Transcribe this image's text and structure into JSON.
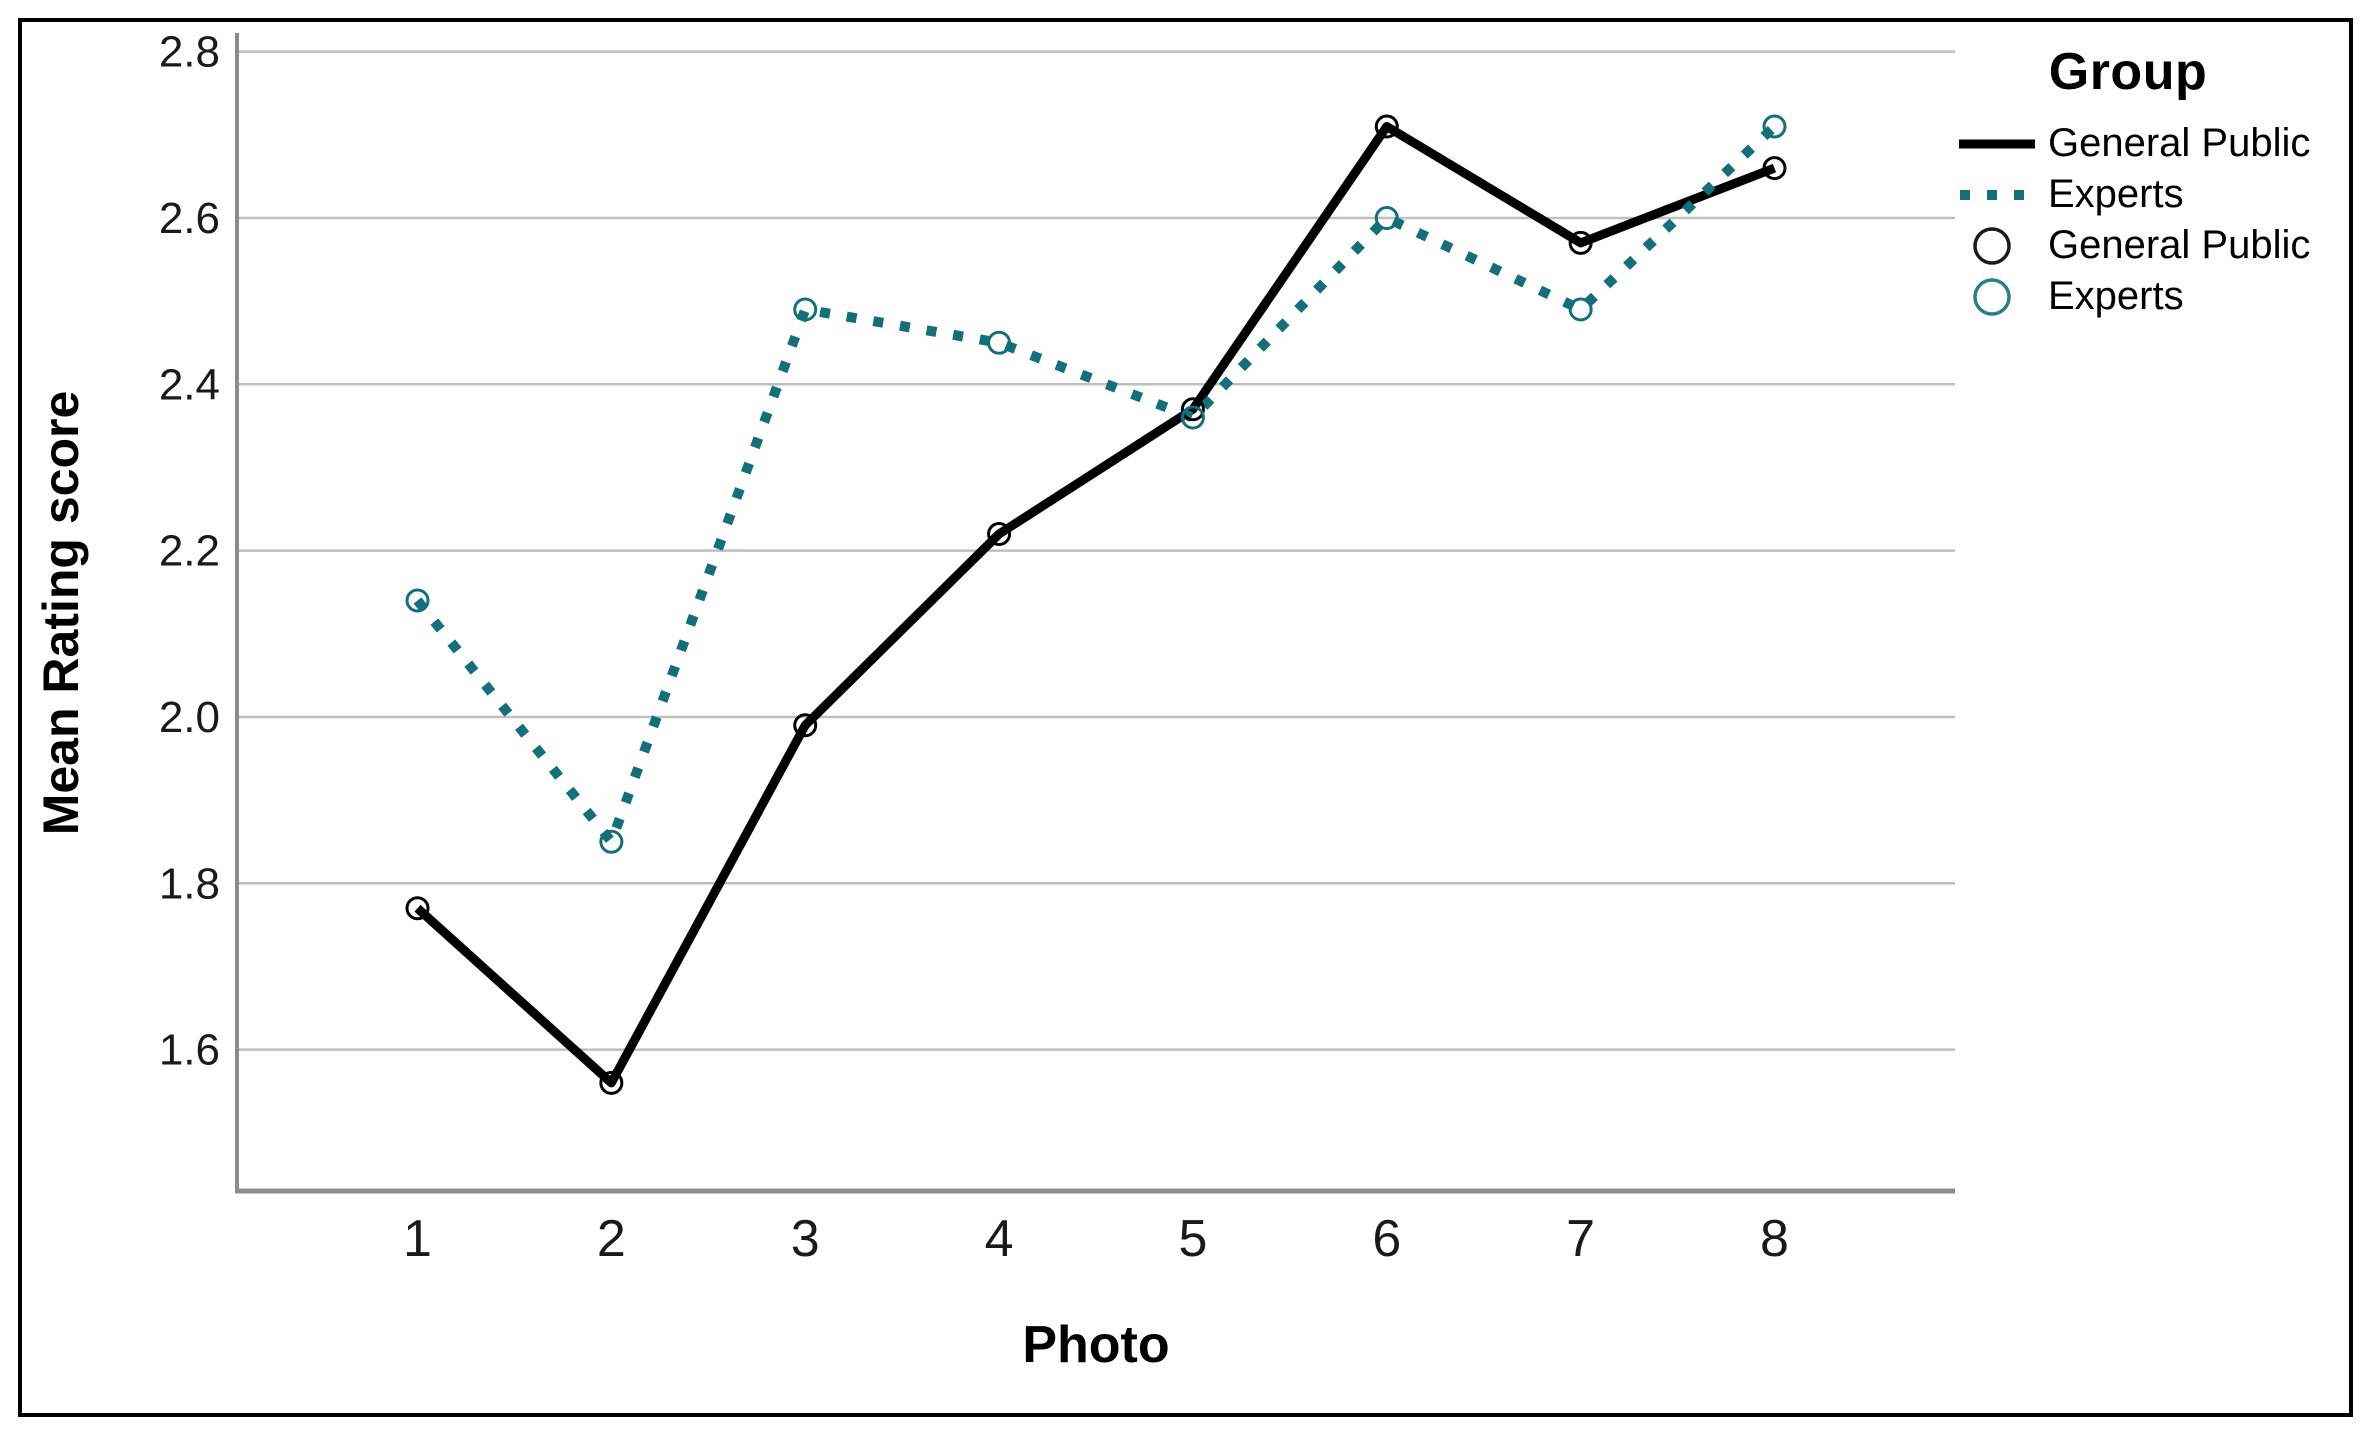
{
  "figure": {
    "background": "#ffffff",
    "border_color": "#000000"
  },
  "chart_data": {
    "type": "line",
    "title": "",
    "xlabel": "Photo",
    "ylabel": "Mean Rating score",
    "categories": [
      "1",
      "2",
      "3",
      "4",
      "5",
      "6",
      "7",
      "8"
    ],
    "series": [
      {
        "name": "General Public",
        "color": "#000000",
        "line_style": "solid",
        "marker": "open-circle",
        "values": [
          1.77,
          1.56,
          1.99,
          2.22,
          2.37,
          2.71,
          2.57,
          2.66
        ]
      },
      {
        "name": "Experts",
        "color": "#136f79",
        "line_style": "dotted",
        "marker": "open-circle",
        "values": [
          2.14,
          1.85,
          2.49,
          2.45,
          2.36,
          2.6,
          2.49,
          2.71
        ]
      }
    ],
    "yticks": [
      1.6,
      1.8,
      2.0,
      2.2,
      2.4,
      2.6,
      2.8
    ],
    "ylim": [
      1.43,
      2.82
    ],
    "grid": true,
    "grid_color": "#bfbfbf",
    "axis_color": "#8c8c8c",
    "tick_label_color": "#1a1a1a",
    "legend_position": "right"
  },
  "legend": {
    "title": "Group",
    "items": [
      {
        "label": "General Public",
        "swatch": "solid-line",
        "color": "#000000"
      },
      {
        "label": "Experts",
        "swatch": "dotted-line",
        "color": "#136f79"
      },
      {
        "label": "General Public",
        "swatch": "open-circle",
        "color": "#1a1a1a"
      },
      {
        "label": "Experts",
        "swatch": "open-circle",
        "color": "#2b7e88"
      }
    ]
  }
}
